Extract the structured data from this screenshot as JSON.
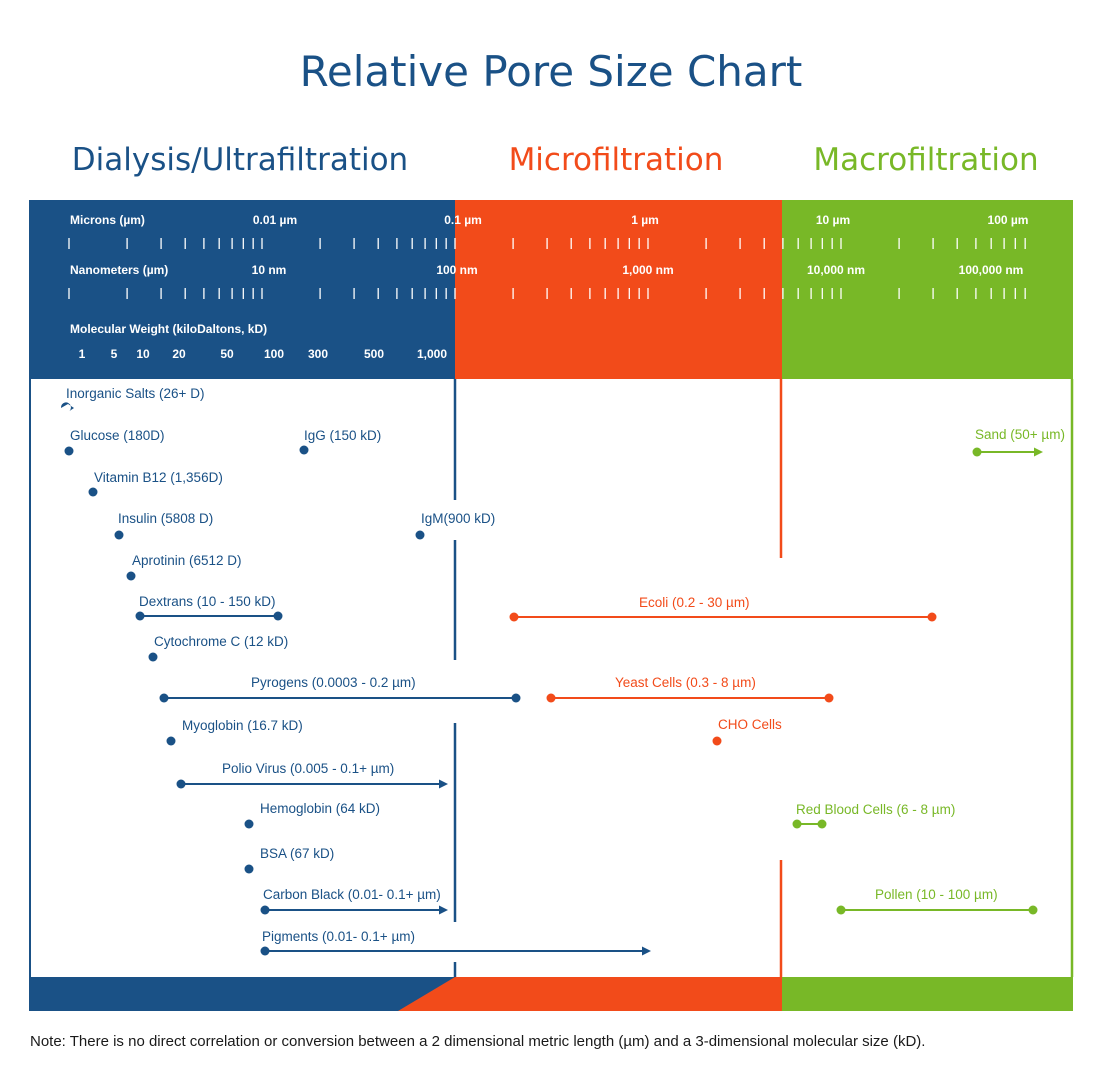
{
  "title": "Relative Pore Size Chart",
  "colors": {
    "dialysis": "#1a5186",
    "micro": "#f24b1a",
    "macro": "#78b827",
    "text": "#1a5186"
  },
  "sections": [
    {
      "key": "dialysis",
      "label": "Dialysis/Ultrafiltration"
    },
    {
      "key": "micro",
      "label": "Microfiltration"
    },
    {
      "key": "macro",
      "label": "Macrofiltration"
    }
  ],
  "scale": {
    "microns_label": "Microns (µm)",
    "microns_ticks": [
      "0.01 µm",
      "0.1 µm",
      "1 µm",
      "10 µm",
      "100 µm"
    ],
    "nanometers_label": "Nanometers (µm)",
    "nanometers_ticks": [
      "10 nm",
      "100 nm",
      "1,000 nm",
      "10,000 nm",
      "100,000 nm"
    ],
    "mw_label": "Molecular Weight (kiloDaltons, kD)",
    "mw_ticks": [
      "1",
      "5",
      "10",
      "20",
      "50",
      "100",
      "300",
      "500",
      "1,000"
    ]
  },
  "items": [
    {
      "label": "Inorganic Salts (26+ D)",
      "group": "dialysis",
      "kind": "point"
    },
    {
      "label": "Glucose (180D)",
      "group": "dialysis",
      "kind": "point"
    },
    {
      "label": "IgG (150 kD)",
      "group": "dialysis",
      "kind": "point"
    },
    {
      "label": "Sand (50+ µm)",
      "group": "macro",
      "kind": "arrow"
    },
    {
      "label": "Vitamin B12 (1,356D)",
      "group": "dialysis",
      "kind": "point"
    },
    {
      "label": "Insulin (5808 D)",
      "group": "dialysis",
      "kind": "point"
    },
    {
      "label": "IgM(900 kD)",
      "group": "dialysis",
      "kind": "point"
    },
    {
      "label": "Aprotinin (6512 D)",
      "group": "dialysis",
      "kind": "point"
    },
    {
      "label": "Dextrans (10 - 150 kD)",
      "group": "dialysis",
      "kind": "range"
    },
    {
      "label": "Ecoli (0.2 - 30 µm)",
      "group": "micro",
      "kind": "range"
    },
    {
      "label": "Cytochrome C (12 kD)",
      "group": "dialysis",
      "kind": "point"
    },
    {
      "label": "Pyrogens (0.0003 - 0.2 µm)",
      "group": "dialysis",
      "kind": "range"
    },
    {
      "label": "Yeast Cells (0.3 - 8 µm)",
      "group": "micro",
      "kind": "range"
    },
    {
      "label": "Myoglobin (16.7 kD)",
      "group": "dialysis",
      "kind": "point"
    },
    {
      "label": "CHO Cells",
      "group": "micro",
      "kind": "point"
    },
    {
      "label": "Polio Virus (0.005 - 0.1+ µm)",
      "group": "dialysis",
      "kind": "arrow"
    },
    {
      "label": "Hemoglobin (64 kD)",
      "group": "dialysis",
      "kind": "point"
    },
    {
      "label": "Red Blood Cells (6 - 8 µm)",
      "group": "macro",
      "kind": "range"
    },
    {
      "label": "BSA (67 kD)",
      "group": "dialysis",
      "kind": "point"
    },
    {
      "label": "Carbon Black (0.01- 0.1+ µm)",
      "group": "dialysis",
      "kind": "arrow"
    },
    {
      "label": "Pollen (10 - 100 µm)",
      "group": "macro",
      "kind": "range"
    },
    {
      "label": "Pigments (0.01- 0.1+ µm)",
      "group": "dialysis",
      "kind": "arrow"
    }
  ],
  "note": "Note: There is no direct correlation or conversion between a 2 dimensional metric length (µm) and a 3-dimensional molecular size (kD)."
}
